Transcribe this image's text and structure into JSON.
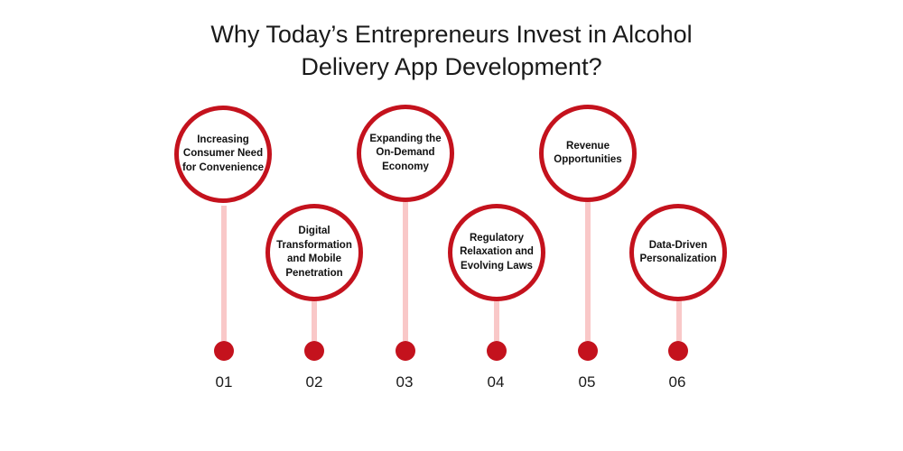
{
  "title": {
    "line1": "Why Today’s Entrepreneurs Invest in Alcohol",
    "line2": "Delivery App Development?"
  },
  "steps": [
    {
      "number": "01",
      "label": "Increasing Consumer Need for Convenience"
    },
    {
      "number": "02",
      "label": "Digital Transformation and Mobile Penetration"
    },
    {
      "number": "03",
      "label": "Expanding the On-Demand Economy"
    },
    {
      "number": "04",
      "label": "Regulatory Relaxation and Evolving Laws"
    },
    {
      "number": "05",
      "label": "Revenue Opportunities"
    },
    {
      "number": "06",
      "label": "Data-Driven Personalization"
    }
  ],
  "colors": {
    "accent": "#c4121d",
    "stem": "#f9c8c8",
    "text": "#1a1a1a",
    "background": "#ffffff"
  }
}
